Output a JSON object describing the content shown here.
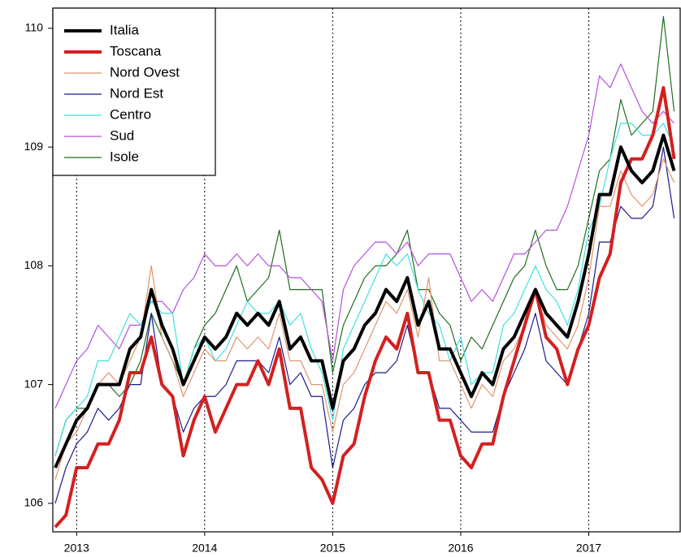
{
  "chart_data": {
    "type": "line",
    "categories": [
      null,
      null,
      "2013",
      null,
      null,
      null,
      null,
      null,
      null,
      null,
      null,
      null,
      null,
      null,
      "2014",
      null,
      null,
      null,
      null,
      null,
      null,
      null,
      null,
      null,
      null,
      null,
      "2015",
      null,
      null,
      null,
      null,
      null,
      null,
      null,
      null,
      null,
      null,
      null,
      "2016",
      null,
      null,
      null,
      null,
      null,
      null,
      null,
      null,
      null,
      null,
      null,
      "2017",
      null,
      null,
      null,
      null,
      null,
      null,
      null,
      null
    ],
    "series": [
      {
        "name": "Italia",
        "color": "#000000",
        "width": 4,
        "values": [
          106.3,
          106.5,
          106.7,
          106.8,
          107.0,
          107.0,
          107.0,
          107.3,
          107.4,
          107.8,
          107.5,
          107.3,
          107.0,
          107.2,
          107.4,
          107.3,
          107.4,
          107.6,
          107.5,
          107.6,
          107.5,
          107.7,
          107.3,
          107.4,
          107.2,
          107.2,
          106.8,
          107.2,
          107.3,
          107.5,
          107.6,
          107.8,
          107.7,
          107.9,
          107.5,
          107.7,
          107.3,
          107.3,
          107.1,
          106.9,
          107.1,
          107.0,
          107.3,
          107.4,
          107.6,
          107.8,
          107.6,
          107.5,
          107.4,
          107.7,
          108.1,
          108.6,
          108.6,
          109.0,
          108.8,
          108.7,
          108.8,
          109.1,
          108.8
        ]
      },
      {
        "name": "Toscana",
        "color": "#d42020",
        "width": 4,
        "values": [
          105.8,
          105.9,
          106.3,
          106.3,
          106.5,
          106.5,
          106.7,
          107.1,
          107.1,
          107.4,
          107.0,
          106.9,
          106.4,
          106.7,
          106.9,
          106.6,
          106.8,
          107.0,
          107.0,
          107.2,
          107.0,
          107.3,
          106.8,
          106.8,
          106.3,
          106.2,
          106.0,
          106.4,
          106.5,
          106.9,
          107.2,
          107.4,
          107.3,
          107.6,
          107.1,
          107.1,
          106.7,
          106.7,
          106.4,
          106.3,
          106.5,
          106.5,
          106.9,
          107.2,
          107.5,
          107.8,
          107.4,
          107.3,
          107.0,
          107.3,
          107.5,
          107.9,
          108.1,
          108.7,
          108.9,
          108.9,
          109.1,
          109.5,
          108.9
        ]
      },
      {
        "name": "Nord Ovest",
        "color": "#e0956b",
        "width": 1.2,
        "values": [
          106.2,
          106.5,
          106.6,
          106.8,
          107.0,
          107.1,
          107.0,
          107.2,
          107.4,
          108.0,
          107.4,
          107.2,
          106.9,
          107.1,
          107.3,
          107.2,
          107.2,
          107.4,
          107.3,
          107.4,
          107.3,
          107.6,
          107.2,
          107.2,
          107.0,
          107.0,
          106.6,
          107.0,
          107.1,
          107.3,
          107.5,
          107.7,
          107.6,
          107.8,
          107.4,
          107.9,
          107.2,
          107.2,
          107.0,
          106.8,
          107.0,
          106.9,
          107.2,
          107.3,
          107.5,
          107.8,
          107.5,
          107.4,
          107.3,
          107.5,
          107.9,
          108.5,
          108.5,
          108.8,
          108.6,
          108.5,
          108.6,
          108.9,
          108.7
        ]
      },
      {
        "name": "Nord Est",
        "color": "#1a1a8c",
        "width": 1.2,
        "values": [
          106.0,
          106.3,
          106.5,
          106.6,
          106.8,
          106.7,
          106.8,
          107.0,
          107.0,
          107.6,
          107.0,
          106.9,
          106.6,
          106.8,
          106.9,
          106.9,
          107.0,
          107.2,
          107.2,
          107.2,
          107.1,
          107.4,
          107.0,
          107.1,
          106.9,
          106.9,
          106.3,
          106.7,
          106.8,
          107.0,
          107.1,
          107.1,
          107.2,
          107.5,
          107.1,
          107.1,
          106.8,
          106.8,
          106.7,
          106.6,
          106.6,
          106.6,
          106.9,
          107.1,
          107.3,
          107.6,
          107.2,
          107.1,
          107.0,
          107.3,
          107.6,
          108.2,
          108.2,
          108.5,
          108.4,
          108.4,
          108.5,
          109.0,
          108.4
        ]
      },
      {
        "name": "Centro",
        "color": "#40e0e0",
        "width": 1.2,
        "values": [
          106.4,
          106.7,
          106.8,
          106.9,
          107.2,
          107.2,
          107.4,
          107.6,
          107.5,
          107.7,
          107.6,
          107.6,
          107.0,
          107.3,
          107.4,
          107.2,
          107.3,
          107.5,
          107.7,
          107.6,
          107.6,
          107.7,
          107.5,
          107.6,
          107.3,
          107.1,
          106.7,
          107.3,
          107.5,
          107.7,
          107.9,
          108.1,
          108.0,
          108.1,
          107.8,
          107.6,
          107.5,
          107.2,
          107.4,
          107.0,
          107.1,
          107.1,
          107.5,
          107.6,
          107.8,
          108.0,
          107.8,
          107.7,
          107.5,
          107.8,
          108.3,
          108.5,
          108.9,
          109.2,
          109.2,
          109.1,
          109.1,
          109.2,
          109.0
        ]
      },
      {
        "name": "Sud",
        "color": "#b44fe0",
        "width": 1.2,
        "values": [
          106.8,
          107.0,
          107.2,
          107.3,
          107.5,
          107.4,
          107.3,
          107.5,
          107.5,
          107.7,
          107.7,
          107.6,
          107.8,
          107.9,
          108.1,
          108.0,
          108.0,
          108.1,
          108.0,
          108.1,
          108.0,
          108.0,
          107.9,
          107.9,
          107.8,
          107.7,
          107.2,
          107.8,
          108.0,
          108.1,
          108.2,
          108.2,
          108.1,
          108.2,
          108.0,
          108.1,
          108.1,
          108.1,
          107.9,
          107.7,
          107.8,
          107.7,
          107.9,
          108.1,
          108.1,
          108.2,
          108.3,
          108.3,
          108.5,
          108.8,
          109.1,
          109.6,
          109.5,
          109.7,
          109.5,
          109.3,
          109.2,
          109.3,
          109.2
        ]
      },
      {
        "name": "Isole",
        "color": "#1e6e1e",
        "width": 1.2,
        "values": [
          106.4,
          106.7,
          106.8,
          106.8,
          107.0,
          107.0,
          106.9,
          107.0,
          107.2,
          107.6,
          107.4,
          107.2,
          107.0,
          107.3,
          107.5,
          107.6,
          107.8,
          108.0,
          107.7,
          107.8,
          107.9,
          108.3,
          107.8,
          107.8,
          107.8,
          107.8,
          107.1,
          107.5,
          107.7,
          107.9,
          108.0,
          108.0,
          108.1,
          108.3,
          107.8,
          107.8,
          107.6,
          107.5,
          107.2,
          107.4,
          107.3,
          107.5,
          107.7,
          107.9,
          108.0,
          108.3,
          108.0,
          107.8,
          107.8,
          108.0,
          108.4,
          108.8,
          108.9,
          109.4,
          109.1,
          109.2,
          109.3,
          110.1,
          109.3
        ]
      }
    ],
    "ylim": [
      105.76,
      110.17
    ],
    "yticks": [
      106,
      107,
      108,
      109,
      110
    ],
    "grid": true,
    "legend": "top-left"
  }
}
